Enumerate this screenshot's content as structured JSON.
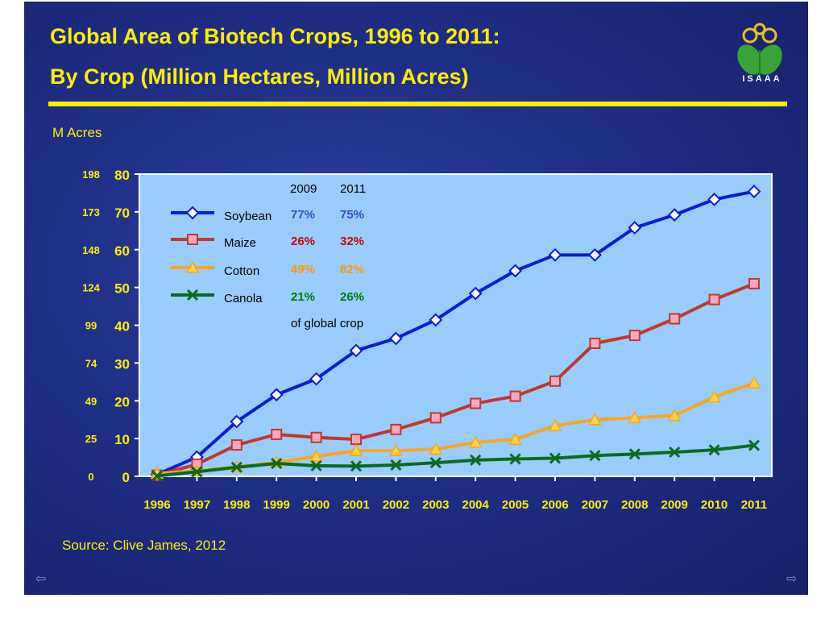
{
  "slide": {
    "title_line1": "Global Area of Biotech Crops, 1996 to 2011:",
    "title_line2": "By Crop (Million Hectares, Million Acres)",
    "logo_text": "ISAAA",
    "m_acres_label": "M Acres",
    "source": "Source: Clive James, 2012",
    "nav_prev_icon": "arrow-left-icon",
    "nav_next_icon": "arrow-right-icon"
  },
  "colors": {
    "background": "#1f2f86",
    "title": "#ffee00",
    "plot_bg": "#99ccff",
    "soybean": "#0a1ad6",
    "maize": "#c0392b",
    "cotton": "#f5a623",
    "canola": "#0b6b1e"
  },
  "legend_table": {
    "header_2009": "2009",
    "header_2011": "2011",
    "rows": [
      {
        "crop": "Soybean",
        "pct2009": "77%",
        "pct2011": "75%",
        "color": "#3b4cc8"
      },
      {
        "crop": "Maize",
        "pct2009": "26%",
        "pct2011": "32%",
        "color": "#cc0000"
      },
      {
        "crop": "Cotton",
        "pct2009": "49%",
        "pct2011": "82%",
        "color": "#ff9900"
      },
      {
        "crop": "Canola",
        "pct2009": "21%",
        "pct2011": "26%",
        "color": "#007a00"
      }
    ],
    "footnote": "of global crop"
  },
  "chart_data": {
    "type": "line",
    "x": [
      "1996",
      "1997",
      "1998",
      "1999",
      "2000",
      "2001",
      "2002",
      "2003",
      "2004",
      "2005",
      "2006",
      "2007",
      "2008",
      "2009",
      "2010",
      "2011"
    ],
    "ylim": [
      0,
      80
    ],
    "yticks_hectares": [
      0,
      10,
      20,
      30,
      40,
      50,
      60,
      70,
      80
    ],
    "yticks_acres": [
      "0",
      "25",
      "49",
      "74",
      "99",
      "124",
      "148",
      "173",
      "198"
    ],
    "legend_position": "top-left",
    "series": [
      {
        "name": "Soybean",
        "marker": "diamond",
        "color": "#0a1ad6",
        "values": [
          0.5,
          5.1,
          14.5,
          21.6,
          25.8,
          33.3,
          36.5,
          41.4,
          48.4,
          54.4,
          58.6,
          58.6,
          65.8,
          69.2,
          73.3,
          75.4
        ]
      },
      {
        "name": "Maize",
        "marker": "square",
        "color": "#c0392b",
        "values": [
          0.3,
          3.2,
          8.3,
          11.1,
          10.3,
          9.8,
          12.4,
          15.5,
          19.3,
          21.2,
          25.2,
          35.2,
          37.3,
          41.7,
          46.8,
          51.0
        ]
      },
      {
        "name": "Cotton",
        "marker": "triangle",
        "color": "#f5a623",
        "values": [
          0.8,
          1.4,
          2.5,
          3.7,
          5.3,
          6.8,
          6.8,
          7.2,
          9.0,
          9.8,
          13.4,
          15.0,
          15.5,
          16.1,
          21.0,
          24.7
        ]
      },
      {
        "name": "Canola",
        "marker": "x",
        "color": "#0b6b1e",
        "values": [
          0.1,
          1.2,
          2.4,
          3.4,
          2.8,
          2.7,
          3.0,
          3.6,
          4.3,
          4.6,
          4.8,
          5.5,
          5.9,
          6.4,
          7.0,
          8.2
        ]
      }
    ]
  }
}
